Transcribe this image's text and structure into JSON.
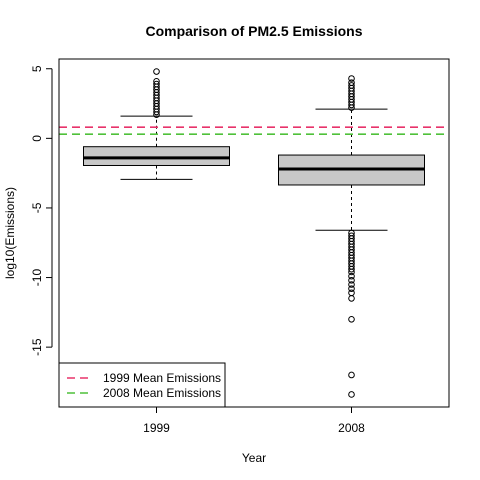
{
  "chart_data": {
    "type": "boxplot",
    "title": "Comparison of PM2.5 Emissions",
    "xlabel": "Year",
    "ylabel": "log10(Emissions)",
    "ylim": [
      -19.3,
      5.7
    ],
    "yticks": [
      5,
      0,
      -5,
      -10,
      -15
    ],
    "yticklabels": [
      "5",
      "0",
      "-5",
      "-10",
      "-15"
    ],
    "categories": [
      "1999",
      "2008"
    ],
    "box_fill": "#c8c8c8",
    "boxes": [
      {
        "category": "1999",
        "whisker_low": -2.95,
        "q1": -1.95,
        "median": -1.4,
        "q3": -0.6,
        "whisker_high": 1.6,
        "outliers_high": [
          1.7,
          1.9,
          2.1,
          2.3,
          2.5,
          2.7,
          2.9,
          3.1,
          3.3,
          3.5,
          3.7,
          3.9,
          4.1,
          4.8
        ],
        "outliers_low": []
      },
      {
        "category": "2008",
        "whisker_low": -6.6,
        "q1": -3.35,
        "median": -2.2,
        "q3": -1.2,
        "whisker_high": 2.1,
        "outliers_high": [
          2.2,
          2.4,
          2.6,
          2.8,
          3.0,
          3.2,
          3.4,
          3.6,
          3.8,
          4.0,
          4.3
        ],
        "outliers_low": [
          -6.8,
          -7.0,
          -7.2,
          -7.4,
          -7.6,
          -7.8,
          -8.0,
          -8.2,
          -8.4,
          -8.6,
          -8.8,
          -9.0,
          -9.2,
          -9.4,
          -9.6,
          -9.9,
          -10.2,
          -10.5,
          -10.8,
          -11.1,
          -11.5,
          -13.0,
          -17.0,
          -18.4
        ]
      }
    ],
    "reference_lines": [
      {
        "name": "1999 Mean Emissions",
        "value": 0.8,
        "color": "#e8336a"
      },
      {
        "name": "2008 Mean Emissions",
        "value": 0.3,
        "color": "#4fc13a"
      }
    ],
    "legend_position": "bottom-left"
  }
}
